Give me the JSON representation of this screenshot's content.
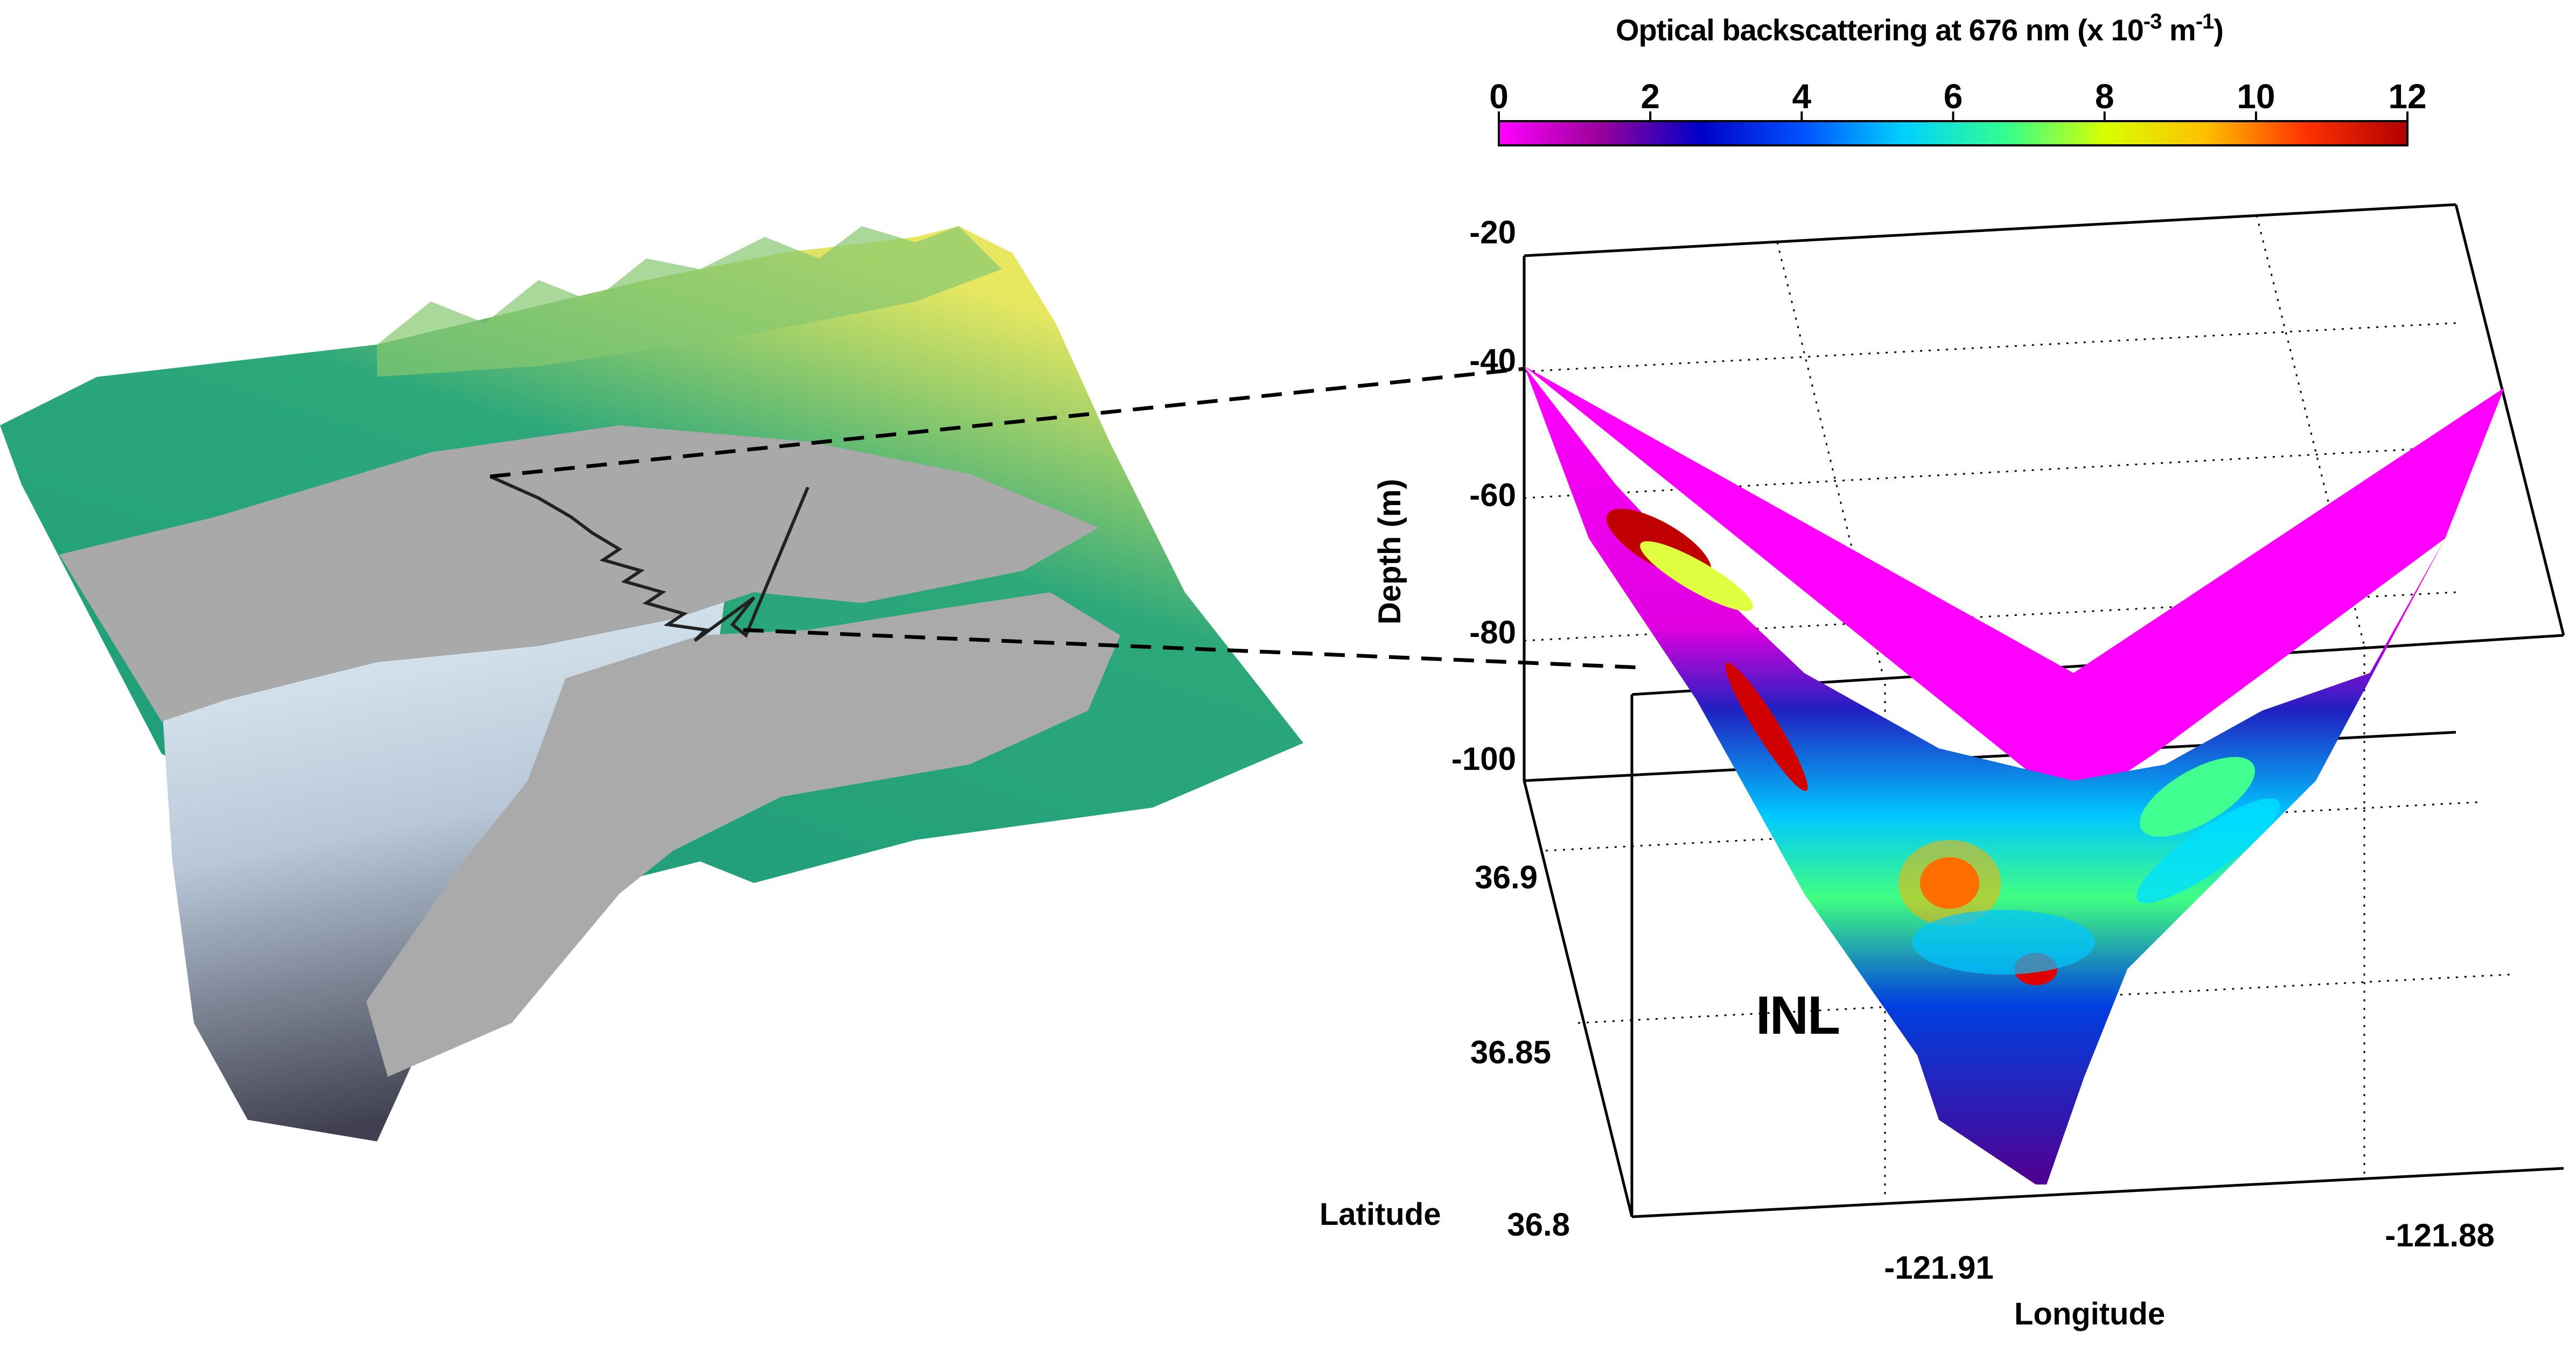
{
  "colorbar": {
    "title": "Optical backscattering at 676 nm (x 10",
    "title_exp1": "-3",
    "title_mid": " m",
    "title_exp2": "-1",
    "title_end": ")",
    "ticks": [
      "0",
      "2",
      "4",
      "6",
      "8",
      "10",
      "12"
    ],
    "range": [
      0,
      12
    ],
    "colors": [
      "#ff00ff",
      "#9a009a",
      "#0000c8",
      "#0050ff",
      "#00d0ff",
      "#30ff90",
      "#d8ff00",
      "#ffc000",
      "#ff3000",
      "#b00000"
    ]
  },
  "axes": {
    "depth_label": "Depth (m)",
    "depth_ticks": [
      "-20",
      "-40",
      "-60",
      "-80",
      "-100"
    ],
    "latitude_label": "Latitude",
    "latitude_ticks": [
      "36.9",
      "36.85",
      "36.8"
    ],
    "longitude_label": "Longitude",
    "longitude_ticks": [
      "-121.91",
      "-121.88"
    ]
  },
  "annotation": "INL",
  "terrain_colors": {
    "land_low": "#1a9a7a",
    "land_high": "#e8e860",
    "shelf": "#a8a8a8",
    "canyon": "#c8dde4",
    "canyon_deep": "#404050"
  },
  "chart_data": {
    "type": "heatmap",
    "title": "Optical backscattering at 676 nm (x 10-3 m-1)",
    "colorbar_range": [
      0,
      12
    ],
    "zlabel": "Depth (m)",
    "zlim": [
      -100,
      -20
    ],
    "ylabel": "Latitude",
    "ylim": [
      36.8,
      36.9
    ],
    "xlabel": "Longitude",
    "x_ticks": [
      -121.91,
      -121.88
    ],
    "annotations": [
      "INL"
    ],
    "grid": true
  }
}
